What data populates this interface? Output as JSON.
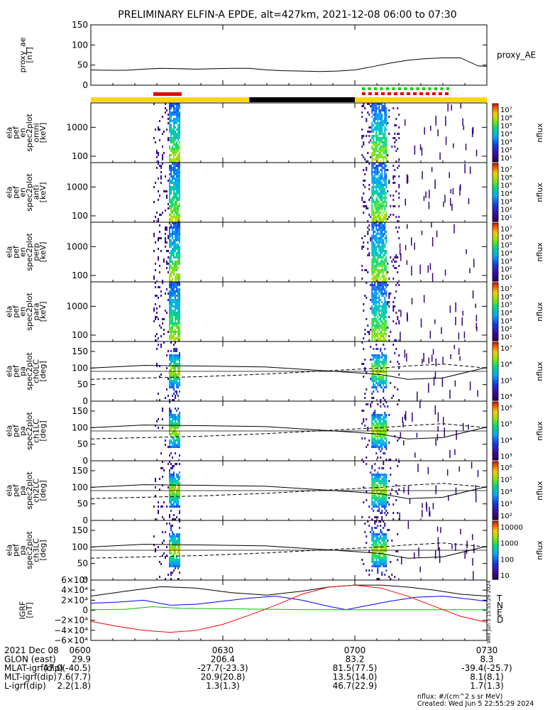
{
  "title": "PRELIMINARY ELFIN-A EPDE, alt=427km, 2021-12-08 06:00 to 07:30",
  "panels": {
    "proxy_ae": {
      "ylabel": [
        "proxy_ae",
        "[nT]"
      ],
      "yticks": [
        "150",
        "100",
        "50",
        "0"
      ],
      "legend": "proxy_AE"
    },
    "spec": [
      {
        "ylabel": [
          "ela",
          "pef",
          "en",
          "spec2plot",
          "omni",
          "[keV]"
        ],
        "yticks": [
          "1000",
          "100"
        ]
      },
      {
        "ylabel": [
          "ela",
          "pef",
          "en",
          "spec2plot",
          "anti",
          "[keV]"
        ],
        "yticks": [
          "1000",
          "100"
        ]
      },
      {
        "ylabel": [
          "ela",
          "pef",
          "en",
          "spec2plot",
          "perp",
          "[keV]"
        ],
        "yticks": [
          "1000",
          "100"
        ]
      },
      {
        "ylabel": [
          "ela",
          "pef",
          "en",
          "spec2plot",
          "para",
          "[keV]"
        ],
        "yticks": [
          "1000",
          "100"
        ]
      }
    ],
    "pa": [
      {
        "ylabel": [
          "ela",
          "pef",
          "pa",
          "spec2plot",
          "ch0LC",
          "[deg]"
        ],
        "yticks": [
          "150",
          "100",
          "50",
          "0"
        ]
      },
      {
        "ylabel": [
          "ela",
          "pef",
          "pa",
          "spec2plot",
          "ch1LC",
          "[deg]"
        ],
        "yticks": [
          "150",
          "100",
          "50",
          "0"
        ]
      },
      {
        "ylabel": [
          "ela",
          "pef",
          "pa",
          "spec2plot",
          "ch2LC",
          "[deg]"
        ],
        "yticks": [
          "150",
          "100",
          "50",
          "0"
        ]
      },
      {
        "ylabel": [
          "ela",
          "pef",
          "pa",
          "spec2plot",
          "ch3LC",
          "[deg]"
        ],
        "yticks": [
          "150",
          "100",
          "50",
          "0"
        ]
      }
    ],
    "igrf": {
      "ylabel": [
        "IGRF",
        "[nT]"
      ],
      "yticks": [
        "6×10⁴",
        "4×10⁴",
        "2×10⁴",
        "0",
        "−2×10⁴",
        "−4×10⁴",
        "−6×10⁴"
      ],
      "legend": [
        "T",
        "N",
        "E",
        "D"
      ],
      "legend_colors": [
        "#000000",
        "#0000ff",
        "#00c000",
        "#ff0000"
      ]
    }
  },
  "colorbars": [
    {
      "label": "nflux",
      "ticks": [
        "10⁷",
        "10⁶",
        "10⁵",
        "10⁴",
        "10³",
        "10²",
        "10¹"
      ]
    },
    {
      "label": "nflux",
      "ticks": [
        "10⁷",
        "10⁶",
        "10⁵",
        "10⁴",
        "10³",
        "10²",
        "10¹"
      ]
    },
    {
      "label": "nflux",
      "ticks": [
        "10⁷",
        "10⁶",
        "10⁵",
        "10⁴",
        "10³",
        "10²",
        "10¹"
      ]
    },
    {
      "label": "nflux",
      "ticks": [
        "10⁷",
        "10⁶",
        "10⁵",
        "10⁴",
        "10³",
        "10²",
        "10¹"
      ]
    },
    {
      "label": "nflux",
      "ticks": [
        "10⁷",
        "10⁶",
        "10⁵",
        "10⁴"
      ]
    },
    {
      "label": "nflux",
      "ticks": [
        "10⁶",
        "10⁵",
        "10⁴",
        "10³"
      ]
    },
    {
      "label": "nflux",
      "ticks": [
        "10⁶",
        "10⁵",
        "10⁴",
        "10³",
        "10²"
      ]
    },
    {
      "label": "nflux",
      "ticks": [
        "10000",
        "1000",
        "100",
        "10"
      ]
    }
  ],
  "side_stamp": "Wed Jun  5 15:55:29 2024",
  "footer": {
    "rows": [
      {
        "label": "2021 Dec 08",
        "values": [
          "0600",
          "0630",
          "0700",
          "0730"
        ]
      },
      {
        "label": "GLON (east)",
        "values": [
          "29.9",
          "206.4",
          "83.2",
          "8.3"
        ]
      },
      {
        "label": "MLAT-igrf(dip)",
        "values": [
          "47.0(-40.5)",
          "-27.7(-23.3)",
          "81.5(77.5)",
          "-39.4(-25.7)"
        ]
      },
      {
        "label": "MLT-igrf(dip)",
        "values": [
          "7.6(7.7)",
          "20.9(20.8)",
          "13.5(14.0)",
          "8.1(8.1)"
        ]
      },
      {
        "label": "L-igrf(dip)",
        "values": [
          "2.2(1.8)",
          "1.3(1.3)",
          "46.7(22.9)",
          "1.7(1.3)"
        ]
      }
    ],
    "units_note": "nflux: #/(cm^2 s sr MeV)",
    "created": "Created: Wed Jun  5 22:55:29 2024"
  },
  "chart_data": {
    "type": "line",
    "x_range": [
      "06:00",
      "07:30"
    ],
    "xticks": [
      "0600",
      "0630",
      "0700",
      "0730"
    ],
    "proxy_ae": {
      "ylim": [
        0,
        150
      ],
      "x_min": [
        0,
        4,
        8,
        12,
        16,
        20,
        24,
        28,
        32,
        36,
        40,
        44,
        48,
        52,
        56,
        60,
        64,
        68,
        72,
        76,
        80,
        84,
        88,
        90
      ],
      "values": [
        38,
        37,
        37,
        40,
        42,
        41,
        40,
        41,
        42,
        42,
        38,
        36,
        35,
        34,
        35,
        38,
        46,
        55,
        62,
        66,
        68,
        68,
        48,
        47
      ]
    },
    "igrf": {
      "ylim": [
        -60000,
        60000
      ],
      "series": [
        {
          "name": "T",
          "color": "#000000",
          "x_min": [
            0,
            8,
            16,
            24,
            32,
            40,
            48,
            54,
            60,
            66,
            72,
            78,
            84,
            90
          ],
          "values": [
            28000,
            38000,
            47000,
            44000,
            35000,
            30000,
            38000,
            46000,
            50000,
            50000,
            46000,
            40000,
            32000,
            28000
          ]
        },
        {
          "name": "N",
          "color": "#0000ff",
          "x_min": [
            0,
            6,
            12,
            18,
            24,
            30,
            36,
            42,
            48,
            54,
            58,
            62,
            68,
            74,
            80,
            86,
            90
          ],
          "values": [
            14000,
            16000,
            20000,
            10000,
            12000,
            18000,
            24000,
            28000,
            20000,
            8000,
            1000,
            8000,
            18000,
            26000,
            28000,
            22000,
            18000
          ]
        },
        {
          "name": "E",
          "color": "#00c000",
          "x_min": [
            0,
            8,
            14,
            20,
            30,
            40,
            50,
            60,
            70,
            80,
            90
          ],
          "values": [
            1000,
            2000,
            7000,
            4000,
            3000,
            2000,
            1000,
            1000,
            1000,
            1000,
            1000
          ]
        },
        {
          "name": "D",
          "color": "#ff0000",
          "x_min": [
            0,
            6,
            12,
            18,
            24,
            30,
            36,
            42,
            48,
            54,
            60,
            66,
            72,
            78,
            84,
            90
          ],
          "values": [
            -22000,
            -32000,
            -40000,
            -44000,
            -40000,
            -28000,
            -10000,
            10000,
            32000,
            46000,
            50000,
            44000,
            28000,
            8000,
            -12000,
            -24000
          ]
        }
      ]
    },
    "spec_ylim_keV": [
      60,
      7000
    ],
    "pa_ylim_deg": [
      0,
      180
    ]
  }
}
